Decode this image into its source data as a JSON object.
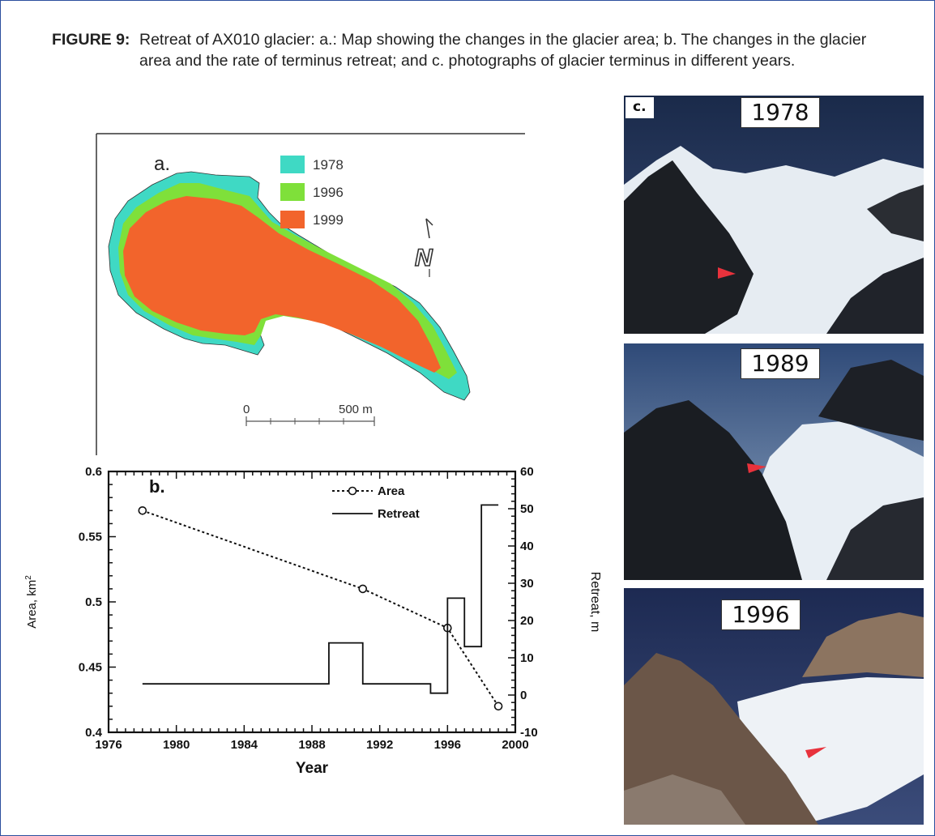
{
  "caption": {
    "label": "FIGURE 9:",
    "text": "Retreat of AX010 glacier: a.: Map showing the changes in the glacier area; b. The changes in the glacier area and the rate of terminus retreat; and c. photographs of glacier terminus in different years."
  },
  "map": {
    "panel_label": "a.",
    "legend": [
      {
        "label": "1978",
        "color": "#3fd9c4"
      },
      {
        "label": "1996",
        "color": "#7fe03a"
      },
      {
        "label": "1999",
        "color": "#f2642c"
      }
    ],
    "north_label": "N",
    "scale_start": "0",
    "scale_end": "500 m"
  },
  "chart_data": {
    "type": "line",
    "panel_label": "b.",
    "xlabel": "Year",
    "ylabel_left": "Area, km",
    "ylabel_left_superscript": "2",
    "ylabel_right": "Retreat, m",
    "xlim": [
      1976,
      2000
    ],
    "ylim_left": [
      0.4,
      0.6
    ],
    "ylim_right": [
      -10,
      60
    ],
    "x_ticks": [
      "1976",
      "1980",
      "1984",
      "1988",
      "1992",
      "1996",
      "2000"
    ],
    "y_left_ticks": [
      "0.4",
      "0.45",
      "0.5",
      "0.55",
      "0.6"
    ],
    "y_right_ticks": [
      "-10",
      "0",
      "10",
      "20",
      "30",
      "40",
      "50",
      "60"
    ],
    "legend_position": "top-right",
    "series": [
      {
        "name": "Area",
        "style": "dotted-circle",
        "x": [
          1978,
          1991,
          1996,
          1999
        ],
        "y": [
          0.57,
          0.51,
          0.48,
          0.42
        ]
      },
      {
        "name": "Retreat",
        "style": "step",
        "steps": [
          {
            "x0": 1978,
            "x1": 1989,
            "y": 3
          },
          {
            "x0": 1989,
            "x1": 1991,
            "y": 14
          },
          {
            "x0": 1991,
            "x1": 1995,
            "y": 3
          },
          {
            "x0": 1995,
            "x1": 1996,
            "y": 0.5
          },
          {
            "x0": 1996,
            "x1": 1997,
            "y": 26
          },
          {
            "x0": 1997,
            "x1": 1998,
            "y": 13
          },
          {
            "x0": 1998,
            "x1": 1999,
            "y": 51
          }
        ]
      }
    ]
  },
  "photos": {
    "panel_label": "c.",
    "items": [
      {
        "year": "1978"
      },
      {
        "year": "1989"
      },
      {
        "year": "1996"
      }
    ],
    "marker_color": "#e8323c"
  }
}
